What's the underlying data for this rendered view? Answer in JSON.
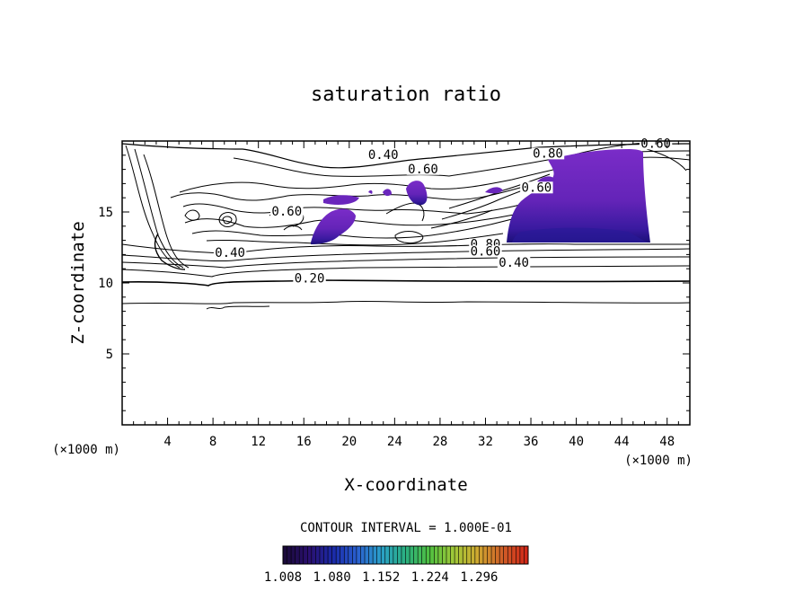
{
  "chart_data": {
    "type": "contour",
    "title": "saturation ratio",
    "xlabel": "X-coordinate",
    "ylabel": "Z-coordinate",
    "x_unit": "(×1000 m)",
    "x_unit_right": "(×1000 m)",
    "xlim": [
      0,
      50
    ],
    "ylim": [
      0,
      20
    ],
    "x_ticks": [
      4,
      8,
      12,
      16,
      20,
      24,
      28,
      32,
      36,
      40,
      44,
      48
    ],
    "y_ticks": [
      5,
      10,
      15
    ],
    "contour_interval_text": "CONTOUR INTERVAL = 1.000E-01",
    "contour_labels": [
      {
        "text": "0.40",
        "x": 23.0,
        "y": 18.8
      },
      {
        "text": "0.60",
        "x": 26.5,
        "y": 17.8
      },
      {
        "text": "0.80",
        "x": 37.5,
        "y": 18.9
      },
      {
        "text": "0.60",
        "x": 47.0,
        "y": 19.6
      },
      {
        "text": "0.60",
        "x": 36.5,
        "y": 16.5
      },
      {
        "text": "0.60",
        "x": 14.5,
        "y": 14.8
      },
      {
        "text": "0.40",
        "x": 9.5,
        "y": 11.9
      },
      {
        "text": "0.80",
        "x": 32.0,
        "y": 12.5
      },
      {
        "text": "0.60",
        "x": 32.0,
        "y": 12.0
      },
      {
        "text": "0.40",
        "x": 34.5,
        "y": 11.2
      },
      {
        "text": "0.20",
        "x": 16.5,
        "y": 10.1
      }
    ],
    "shaded_regions": [
      {
        "name": "supersaturated-east",
        "x_range": [
          33.5,
          46.5
        ],
        "z_range": [
          12.6,
          19.2
        ]
      },
      {
        "name": "supersaturated-central",
        "x_range": [
          16.5,
          21.5
        ],
        "z_range": [
          12.6,
          15.7
        ]
      },
      {
        "name": "supersaturated-cap",
        "x_range": [
          25,
          27
        ],
        "z_range": [
          15.5,
          17.2
        ]
      }
    ],
    "colorbar": {
      "min": 1.008,
      "max": 1.368,
      "tick_labels": [
        "1.008",
        "1.080",
        "1.152",
        "1.224",
        "1.296"
      ],
      "colors": [
        "#1a0a3a",
        "#2a1070",
        "#1a2aa8",
        "#2a60d0",
        "#2aa0c8",
        "#2ab080",
        "#50c040",
        "#a0c838",
        "#d0a830",
        "#d06028",
        "#d02818"
      ]
    }
  }
}
